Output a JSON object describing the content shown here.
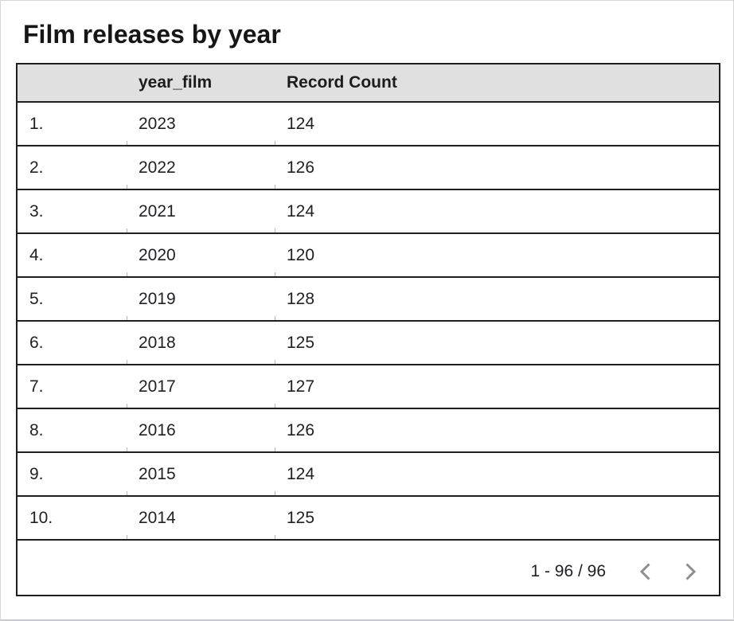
{
  "page": {
    "title": "Film releases by year"
  },
  "table": {
    "columns": [
      "",
      "year_film",
      "Record Count"
    ],
    "rows": [
      {
        "num": "1.",
        "year_film": "2023",
        "record_count": "124"
      },
      {
        "num": "2.",
        "year_film": "2022",
        "record_count": "126"
      },
      {
        "num": "3.",
        "year_film": "2021",
        "record_count": "124"
      },
      {
        "num": "4.",
        "year_film": "2020",
        "record_count": "120"
      },
      {
        "num": "5.",
        "year_film": "2019",
        "record_count": "128"
      },
      {
        "num": "6.",
        "year_film": "2018",
        "record_count": "125"
      },
      {
        "num": "7.",
        "year_film": "2017",
        "record_count": "127"
      },
      {
        "num": "8.",
        "year_film": "2016",
        "record_count": "126"
      },
      {
        "num": "9.",
        "year_film": "2015",
        "record_count": "124"
      },
      {
        "num": "10.",
        "year_film": "2014",
        "record_count": "125"
      }
    ]
  },
  "pagination": {
    "range_label": "1 - 96 / 96",
    "prev_icon": "chevron-left-icon",
    "next_icon": "chevron-right-icon"
  },
  "colors": {
    "header_bg": "#e0e0e0",
    "table_border": "#1f1f1f",
    "text": "#202124",
    "chevron_gray": "#8f8f8f",
    "page_edge": "#c6c9ce"
  },
  "chart_data": {
    "type": "table",
    "title": "Film releases by year",
    "columns": [
      "year_film",
      "Record Count"
    ],
    "rows": [
      [
        2023,
        124
      ],
      [
        2022,
        126
      ],
      [
        2021,
        124
      ],
      [
        2020,
        120
      ],
      [
        2019,
        128
      ],
      [
        2018,
        125
      ],
      [
        2017,
        127
      ],
      [
        2016,
        126
      ],
      [
        2015,
        124
      ],
      [
        2014,
        125
      ]
    ],
    "pagination": "1 - 96 / 96",
    "layout_hints": {
      "row_numbers": true,
      "header_bold": true,
      "grid": "horizontal-only"
    }
  }
}
